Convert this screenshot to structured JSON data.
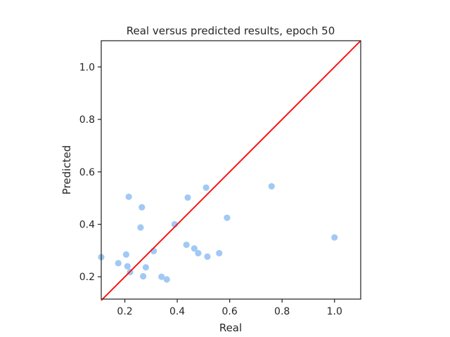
{
  "chart_data": {
    "type": "scatter",
    "title": "Real versus predicted results, epoch 50",
    "xlabel": "Real",
    "ylabel": "Predicted",
    "xlim": [
      0.11,
      1.1
    ],
    "ylim": [
      0.115,
      1.1
    ],
    "xticks": [
      0.2,
      0.4,
      0.6,
      0.8,
      1.0
    ],
    "yticks": [
      0.2,
      0.4,
      0.6,
      0.8,
      1.0
    ],
    "xtick_labels": [
      "0.2",
      "0.4",
      "0.6",
      "0.8",
      "1.0"
    ],
    "ytick_labels": [
      "0.2",
      "0.4",
      "0.6",
      "0.8",
      "1.0"
    ],
    "grid": false,
    "point_color": "#a1c9f4",
    "line_color": "#ff0000",
    "reference_line": {
      "type": "identity",
      "x": [
        0.11,
        1.1
      ],
      "y": [
        0.11,
        1.1
      ]
    },
    "series": [
      {
        "x": [
          0.11,
          0.175,
          0.205,
          0.21,
          0.215,
          0.22,
          0.26,
          0.265,
          0.27,
          0.28,
          0.31,
          0.34,
          0.36,
          0.39,
          0.435,
          0.44,
          0.465,
          0.48,
          0.51,
          0.515,
          0.56,
          0.59,
          0.76,
          1.0
        ],
        "y": [
          0.275,
          0.252,
          0.285,
          0.24,
          0.505,
          0.218,
          0.388,
          0.465,
          0.202,
          0.236,
          0.298,
          0.2,
          0.19,
          0.4,
          0.322,
          0.502,
          0.308,
          0.29,
          0.54,
          0.277,
          0.29,
          0.425,
          0.545,
          0.35
        ]
      }
    ]
  }
}
